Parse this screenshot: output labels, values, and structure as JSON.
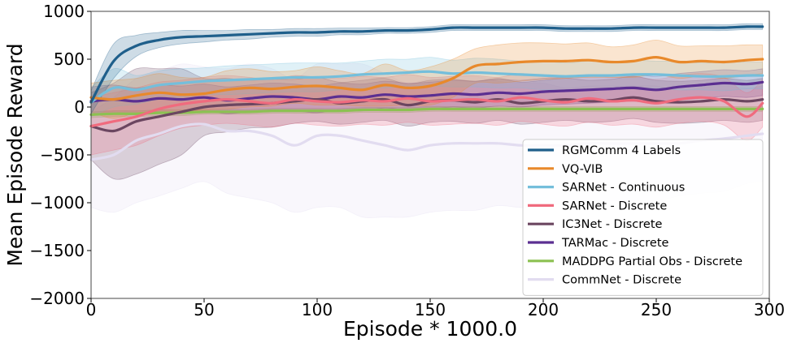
{
  "chart_data": {
    "type": "line",
    "title": "",
    "xlabel": "Episode * 1000.0",
    "ylabel": "Mean Episode Reward",
    "xlim": [
      0,
      300
    ],
    "ylim": [
      -2000,
      1000
    ],
    "xticks": [
      0,
      50,
      100,
      150,
      200,
      250,
      300
    ],
    "yticks": [
      1000,
      500,
      0,
      -500,
      -1000,
      -1500,
      -2000
    ],
    "xtick_labels": [
      "0",
      "50",
      "100",
      "150",
      "200",
      "250",
      "300"
    ],
    "ytick_labels": [
      "1000",
      "500",
      "0",
      "−500",
      "−1000",
      "−1500",
      "−2000"
    ],
    "grid": false,
    "legend_position": "lower-right",
    "x": [
      0,
      10,
      20,
      30,
      40,
      50,
      60,
      70,
      80,
      90,
      100,
      110,
      120,
      130,
      140,
      150,
      160,
      170,
      180,
      190,
      200,
      210,
      220,
      230,
      240,
      250,
      260,
      270,
      280,
      290,
      297
    ],
    "series": [
      {
        "name": "RGMComm 4 Labels",
        "color": "#1f5f8b",
        "values": [
          50,
          480,
          640,
          700,
          730,
          740,
          750,
          760,
          770,
          780,
          780,
          790,
          790,
          800,
          800,
          810,
          830,
          830,
          830,
          830,
          830,
          820,
          820,
          820,
          830,
          830,
          830,
          830,
          830,
          840,
          840
        ],
        "band": [
          120,
          180,
          110,
          80,
          70,
          60,
          50,
          50,
          40,
          40,
          40,
          35,
          35,
          30,
          30,
          30,
          30,
          30,
          30,
          30,
          30,
          30,
          30,
          30,
          30,
          30,
          30,
          30,
          30,
          30,
          30
        ]
      },
      {
        "name": "VQ-VIB",
        "color": "#e8892b",
        "values": [
          100,
          80,
          120,
          150,
          130,
          140,
          180,
          200,
          190,
          210,
          220,
          200,
          180,
          230,
          200,
          220,
          300,
          430,
          450,
          470,
          480,
          480,
          490,
          470,
          480,
          520,
          470,
          480,
          470,
          490,
          500
        ],
        "band": [
          150,
          200,
          180,
          200,
          180,
          170,
          200,
          200,
          180,
          170,
          200,
          180,
          170,
          220,
          180,
          200,
          200,
          180,
          200,
          200,
          190,
          180,
          180,
          160,
          170,
          180,
          170,
          160,
          170,
          160,
          150
        ]
      },
      {
        "name": "SARNet - Continuous",
        "color": "#74bedb",
        "values": [
          50,
          200,
          180,
          230,
          250,
          270,
          280,
          290,
          300,
          310,
          310,
          320,
          340,
          350,
          360,
          370,
          350,
          360,
          350,
          340,
          330,
          320,
          330,
          330,
          340,
          340,
          330,
          320,
          320,
          330,
          330
        ],
        "band": [
          150,
          200,
          150,
          150,
          150,
          140,
          150,
          150,
          150,
          150,
          150,
          140,
          140,
          150,
          140,
          150,
          140,
          150,
          150,
          140,
          150,
          140,
          150,
          140,
          150,
          140,
          150,
          140,
          150,
          140,
          140
        ]
      },
      {
        "name": "SARNet - Discrete",
        "color": "#f06b7e",
        "values": [
          -200,
          -150,
          -100,
          -20,
          30,
          60,
          80,
          60,
          40,
          80,
          60,
          50,
          70,
          60,
          90,
          60,
          70,
          80,
          60,
          100,
          70,
          50,
          90,
          60,
          70,
          40,
          80,
          100,
          60,
          -100,
          40
        ],
        "band": [
          300,
          300,
          300,
          280,
          250,
          250,
          250,
          250,
          250,
          250,
          250,
          250,
          250,
          250,
          250,
          250,
          250,
          250,
          250,
          250,
          250,
          250,
          250,
          250,
          250,
          250,
          250,
          250,
          250,
          250,
          250
        ]
      },
      {
        "name": "IC3Net - Discrete",
        "color": "#6b4660",
        "values": [
          -200,
          -250,
          -150,
          -100,
          -50,
          0,
          20,
          30,
          40,
          60,
          80,
          40,
          60,
          80,
          20,
          60,
          70,
          50,
          80,
          40,
          60,
          80,
          60,
          70,
          100,
          60,
          50,
          60,
          80,
          60,
          80
        ],
        "band": [
          350,
          500,
          550,
          500,
          450,
          300,
          280,
          250,
          250,
          230,
          230,
          220,
          220,
          220,
          220,
          220,
          220,
          220,
          220,
          220,
          220,
          220,
          220,
          220,
          220,
          220,
          220,
          220,
          220,
          220,
          220
        ]
      },
      {
        "name": "TARMac - Discrete",
        "color": "#5b2f91",
        "values": [
          60,
          80,
          60,
          90,
          80,
          100,
          70,
          90,
          110,
          100,
          80,
          110,
          100,
          130,
          110,
          120,
          140,
          130,
          150,
          140,
          160,
          170,
          180,
          190,
          200,
          180,
          210,
          230,
          250,
          240,
          260
        ],
        "band": [
          150,
          150,
          140,
          140,
          140,
          140,
          140,
          140,
          140,
          140,
          140,
          140,
          140,
          140,
          140,
          140,
          140,
          140,
          140,
          140,
          140,
          140,
          140,
          140,
          140,
          140,
          140,
          140,
          140,
          140,
          140
        ]
      },
      {
        "name": "MADDPG Partial Obs - Discrete",
        "color": "#8cc152",
        "values": [
          -80,
          -70,
          -70,
          -60,
          -60,
          -50,
          -50,
          -50,
          -40,
          -40,
          -40,
          -40,
          -30,
          -30,
          -30,
          -20,
          -20,
          -20,
          -20,
          -20,
          -20,
          -20,
          -20,
          -20,
          -20,
          -20,
          -20,
          -20,
          -20,
          -20,
          -20
        ],
        "band": [
          30,
          30,
          30,
          30,
          30,
          25,
          25,
          25,
          25,
          25,
          25,
          25,
          25,
          25,
          25,
          25,
          25,
          25,
          25,
          25,
          25,
          25,
          25,
          25,
          25,
          25,
          25,
          25,
          25,
          25,
          25
        ]
      },
      {
        "name": "CommNet - Discrete",
        "color": "#e2dcf0",
        "values": [
          -550,
          -500,
          -350,
          -280,
          -200,
          -180,
          -250,
          -250,
          -300,
          -400,
          -300,
          -300,
          -350,
          -400,
          -450,
          -400,
          -380,
          -380,
          -380,
          -400,
          -400,
          -400,
          -380,
          -380,
          -380,
          -380,
          -380,
          -350,
          -330,
          -300,
          -280
        ],
        "band": [
          500,
          600,
          650,
          650,
          650,
          600,
          650,
          700,
          700,
          700,
          750,
          750,
          800,
          750,
          700,
          700,
          700,
          700,
          650,
          650,
          650,
          600,
          600,
          600,
          600,
          600,
          550,
          550,
          550,
          500,
          500
        ]
      }
    ]
  }
}
